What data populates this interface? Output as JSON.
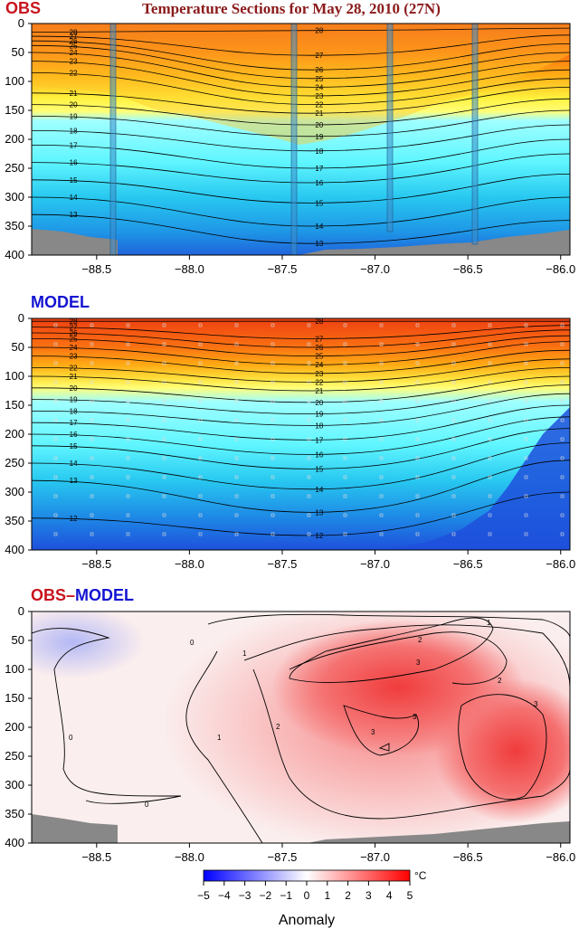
{
  "title": "Temperature Sections for May 28, 2010 (27N)",
  "colors": {
    "obs_red": "#c8141e",
    "model_blue": "#1414d2",
    "title_red": "#8b1a1a"
  },
  "chart_data": [
    {
      "type": "heatmap",
      "panel_label": "OBS",
      "x_ticks": [
        "-88.5",
        "-88.0",
        "-87.5",
        "-87.0",
        "-86.5",
        "-86.0"
      ],
      "y_ticks": [
        "0",
        "50",
        "100",
        "150",
        "200",
        "250",
        "300",
        "350",
        "400"
      ],
      "xlim": [
        -88.85,
        -85.95
      ],
      "ylim": [
        400,
        0
      ],
      "contour_labels": [
        "28",
        "27",
        "26",
        "25",
        "24",
        "23",
        "22",
        "21",
        "20",
        "19",
        "18",
        "17",
        "16",
        "15",
        "14",
        "13"
      ],
      "contour_depths_west": [
        15,
        22,
        30,
        38,
        50,
        65,
        85,
        120,
        140,
        160,
        185,
        210,
        240,
        270,
        300,
        330
      ],
      "contour_depths_center": [
        12,
        55,
        80,
        95,
        110,
        125,
        140,
        155,
        175,
        195,
        220,
        250,
        275,
        310,
        350,
        380
      ],
      "contour_depths_east": [
        8,
        20,
        35,
        50,
        65,
        80,
        95,
        110,
        130,
        150,
        175,
        200,
        225,
        260,
        300,
        340
      ]
    },
    {
      "type": "heatmap",
      "panel_label": "MODEL",
      "x_ticks": [
        "-88.5",
        "-88.0",
        "-87.5",
        "-87.0",
        "-86.5",
        "-86.0"
      ],
      "y_ticks": [
        "0",
        "50",
        "100",
        "150",
        "200",
        "250",
        "300",
        "350",
        "400"
      ],
      "xlim": [
        -88.85,
        -85.95
      ],
      "ylim": [
        400,
        0
      ],
      "contour_labels": [
        "28",
        "27",
        "26",
        "25",
        "24",
        "23",
        "22",
        "21",
        "20",
        "19",
        "18",
        "17",
        "16",
        "15",
        "14",
        "13",
        "12"
      ],
      "contour_depths_west": [
        5,
        15,
        25,
        35,
        50,
        65,
        85,
        100,
        120,
        140,
        160,
        180,
        200,
        220,
        250,
        280,
        345
      ],
      "contour_depths_center": [
        5,
        35,
        50,
        65,
        80,
        95,
        110,
        125,
        145,
        165,
        185,
        210,
        235,
        260,
        295,
        335,
        375
      ],
      "contour_depths_east": [
        5,
        12,
        20,
        30,
        40,
        55,
        70,
        85,
        100,
        115,
        130,
        150,
        170,
        190,
        215,
        245,
        300
      ]
    },
    {
      "type": "heatmap",
      "panel_label": "OBS–MODEL",
      "x_ticks": [
        "-88.5",
        "-88.0",
        "-87.5",
        "-87.0",
        "-86.5",
        "-86.0"
      ],
      "y_ticks": [
        "0",
        "50",
        "100",
        "150",
        "200",
        "250",
        "300",
        "350",
        "400"
      ],
      "xlim": [
        -88.85,
        -85.95
      ],
      "ylim": [
        400,
        0
      ],
      "contour_labels": [
        "0",
        "1",
        "2",
        "3"
      ],
      "colorbar": {
        "ticks": [
          "−5",
          "−4",
          "−3",
          "−2",
          "−1",
          "0",
          "1",
          "2",
          "3",
          "4",
          "5"
        ],
        "unit": "°C",
        "label": "Anomaly",
        "range": [
          -5,
          5
        ]
      }
    }
  ]
}
